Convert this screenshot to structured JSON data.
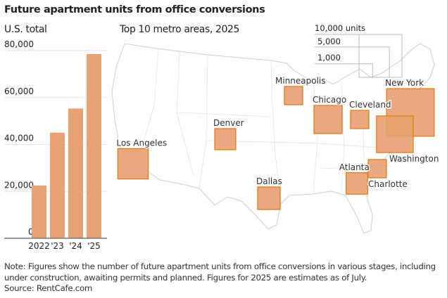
{
  "title": "Future apartment units from office conversions",
  "left_subtitle": "U.S. total",
  "map_subtitle": "Top 10 metro areas, 2025",
  "note": "Note: Figures show the number of future apartment units from office conversions in various stages, including under construction, awaiting permits and planned. Figures for 2025 are estimates as of July.",
  "source": "Source: RentCafe.com",
  "colors": {
    "bar": "#e8a275",
    "square_fill": "#e8a070",
    "square_stroke": "#e07b1a",
    "grid": "#e6e6e6",
    "map_line": "#cfcfcf"
  },
  "chart_data": [
    {
      "type": "bar",
      "title": "U.S. total",
      "categories": [
        "2022",
        "'23",
        "'24",
        "'25"
      ],
      "values": [
        22500,
        45000,
        55300,
        78500
      ],
      "ylim": [
        0,
        80000
      ],
      "yticks": [
        0,
        20000,
        40000,
        60000,
        80000
      ],
      "ytick_labels": [
        "0",
        "20,000",
        "40,000",
        "60,000",
        "80,000"
      ],
      "grid": true
    },
    {
      "type": "proportional-square-map",
      "title": "Top 10 metro areas, 2025",
      "legend": {
        "values": [
          10000,
          5000,
          1000
        ],
        "labels": [
          "10,000 units",
          "5,000",
          "1,000"
        ],
        "placement": "top-right"
      },
      "metros": [
        {
          "name": "New York",
          "units": 12300
        },
        {
          "name": "Washington",
          "units": 7300
        },
        {
          "name": "Los Angeles",
          "units": 5000
        },
        {
          "name": "Chicago",
          "units": 4300
        },
        {
          "name": "Dallas",
          "units": 2750
        },
        {
          "name": "Atlanta",
          "units": 2500
        },
        {
          "name": "Denver",
          "units": 2400
        },
        {
          "name": "Minneapolis",
          "units": 1800
        },
        {
          "name": "Charlotte",
          "units": 1800
        },
        {
          "name": "Cleveland",
          "units": 1800
        }
      ]
    }
  ]
}
